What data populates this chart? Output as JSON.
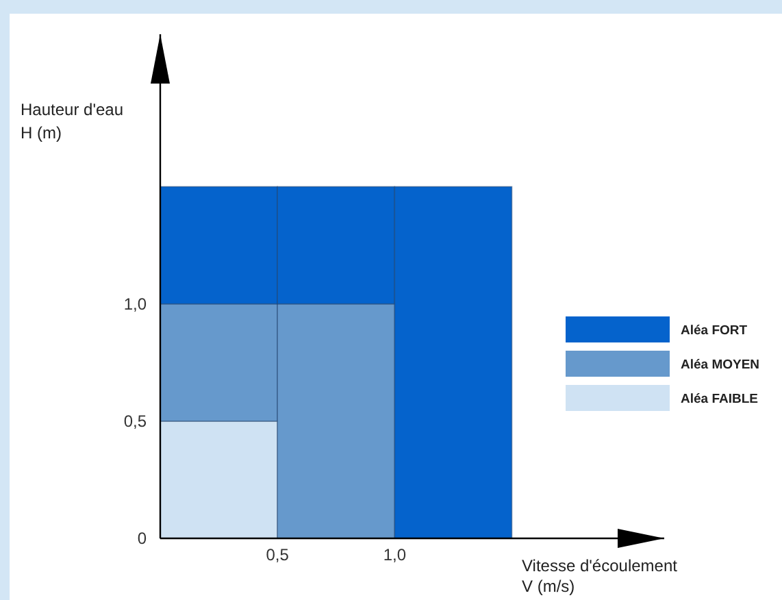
{
  "chart_data": {
    "type": "bar",
    "stacked": true,
    "x": [
      0.25,
      0.75,
      1.25
    ],
    "series": [
      {
        "name": "Aléa FAIBLE",
        "color": "#cfe2f3",
        "values": [
          0.5,
          null,
          null
        ]
      },
      {
        "name": "Aléa MOYEN",
        "color": "#6699cc",
        "values": [
          0.5,
          1.0,
          null
        ]
      },
      {
        "name": "Aléa FORT",
        "color": "#0563cc",
        "values": [
          0.5,
          0.5,
          1.5
        ]
      }
    ],
    "xlim": [
      0,
      2.15
    ],
    "ylim": [
      0,
      2.15
    ],
    "xticks": [
      {
        "value": 0.5,
        "label": "0,5"
      },
      {
        "value": 1.0,
        "label": "1,0"
      }
    ],
    "yticks": [
      0,
      {
        "value": 0.5,
        "label": "0,5"
      },
      {
        "value": 1.0,
        "label": "1,0"
      }
    ],
    "xlabel": "Vitesse d'écoulement\nV (m/s)",
    "ylabel": "Hauteur d'eau\nH (m)",
    "legend": "right",
    "grid": false
  }
}
